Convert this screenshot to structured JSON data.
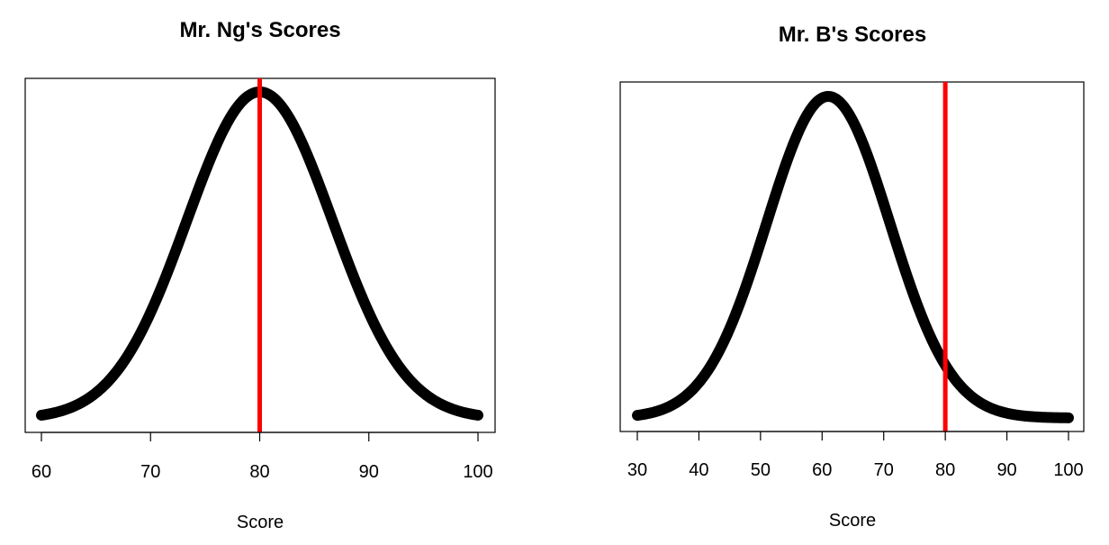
{
  "colors": {
    "curve": "#000000",
    "reference_line": "#ff0000",
    "frame": "#000000",
    "background": "#ffffff"
  },
  "chart_data": [
    {
      "type": "line",
      "title": "Mr. Ng's Scores",
      "xlabel": "Score",
      "ylabel": "",
      "xlim": [
        60,
        100
      ],
      "x_ticks": [
        "60",
        "70",
        "80",
        "90",
        "100"
      ],
      "y_axis_shown": false,
      "grid": false,
      "distribution": {
        "mean": 80,
        "sd": 6.67
      },
      "reference_line_x": 80,
      "series": [
        {
          "x": [
            60,
            62,
            64,
            66,
            68,
            70,
            72,
            74,
            76,
            78,
            80,
            82,
            84,
            86,
            88,
            90,
            92,
            94,
            96,
            98,
            100
          ],
          "y": [
            0.011,
            0.023,
            0.056,
            0.111,
            0.198,
            0.325,
            0.487,
            0.667,
            0.835,
            0.956,
            1.0,
            0.956,
            0.835,
            0.667,
            0.487,
            0.325,
            0.198,
            0.111,
            0.056,
            0.023,
            0.011
          ]
        }
      ]
    },
    {
      "type": "line",
      "title": "Mr. B's Scores",
      "xlabel": "Score",
      "ylabel": "",
      "xlim": [
        30,
        100
      ],
      "x_ticks": [
        "30",
        "40",
        "50",
        "60",
        "70",
        "80",
        "90",
        "100"
      ],
      "y_axis_shown": false,
      "grid": false,
      "distribution": {
        "mean": 61,
        "sd": 10
      },
      "reference_line_x": 80,
      "series": [
        {
          "x": [
            30,
            35,
            40,
            45,
            50,
            55,
            60,
            65,
            70,
            75,
            80,
            85,
            90,
            95,
            100
          ],
          "y": [
            0.008,
            0.034,
            0.11,
            0.278,
            0.546,
            0.835,
            0.995,
            0.923,
            0.667,
            0.375,
            0.164,
            0.056,
            0.015,
            0.003,
            0.001
          ]
        }
      ]
    }
  ]
}
